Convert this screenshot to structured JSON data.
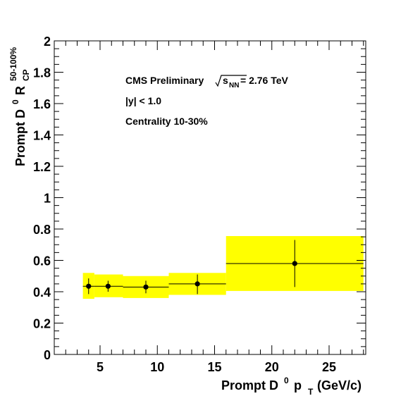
{
  "chart_data": {
    "type": "scatter",
    "xlabel": {
      "prefix": "Prompt D",
      "sup": "0",
      "mid": " p",
      "sub": "T",
      "suffix": " (GeV/c)"
    },
    "ylabel": {
      "prefix": "Prompt D",
      "sup0": "0",
      "mid": " R",
      "sub": "CP",
      "sup": "50-100%"
    },
    "xlim": [
      1,
      28.2
    ],
    "ylim": [
      0,
      2
    ],
    "x_ticks": [
      5,
      10,
      15,
      20,
      25
    ],
    "x_tick_labels": [
      "5",
      "10",
      "15",
      "20",
      "25"
    ],
    "y_ticks": [
      0,
      0.2,
      0.4,
      0.6,
      0.8,
      1,
      1.2,
      1.4,
      1.6,
      1.8,
      2
    ],
    "y_tick_labels": [
      "0",
      "0.2",
      "0.4",
      "0.6",
      "0.8",
      "1",
      "1.2",
      "1.4",
      "1.6",
      "1.8",
      "2"
    ],
    "annotations": {
      "cms": {
        "text": "CMS Preliminary ",
        "sqrt_s": "s",
        "sqrt_sub": "NN",
        "energy": " = 2.76 TeV"
      },
      "rapidity": "|y| < 1.0",
      "centrality": "Centrality 10-30%"
    },
    "series": [
      {
        "points": [
          {
            "x": 4,
            "y": 0.435,
            "xlow": 3.5,
            "xhigh": 4.5,
            "stat_low": 0.385,
            "stat_high": 0.485,
            "sys_xlow": 3.5,
            "sys_xhigh": 4.5,
            "sys_low": 0.355,
            "sys_high": 0.52
          },
          {
            "x": 5.7,
            "y": 0.435,
            "xlow": 4.5,
            "xhigh": 7,
            "stat_low": 0.4,
            "stat_high": 0.47,
            "sys_xlow": 4.5,
            "sys_xhigh": 7,
            "sys_low": 0.365,
            "sys_high": 0.51
          },
          {
            "x": 9,
            "y": 0.43,
            "xlow": 7,
            "xhigh": 11,
            "stat_low": 0.39,
            "stat_high": 0.47,
            "sys_xlow": 7,
            "sys_xhigh": 11,
            "sys_low": 0.36,
            "sys_high": 0.5
          },
          {
            "x": 13.5,
            "y": 0.45,
            "xlow": 11,
            "xhigh": 16,
            "stat_low": 0.385,
            "stat_high": 0.51,
            "sys_xlow": 11,
            "sys_xhigh": 16,
            "sys_low": 0.38,
            "sys_high": 0.52
          },
          {
            "x": 22,
            "y": 0.58,
            "xlow": 16,
            "xhigh": 28,
            "stat_low": 0.43,
            "stat_high": 0.73,
            "sys_xlow": 16,
            "sys_xhigh": 28,
            "sys_low": 0.405,
            "sys_high": 0.755
          }
        ]
      }
    ],
    "colors": {
      "sys_band": "#ffff00",
      "marker": "#000000",
      "axis": "#000000",
      "background": "#ffffff"
    },
    "grid": false
  }
}
